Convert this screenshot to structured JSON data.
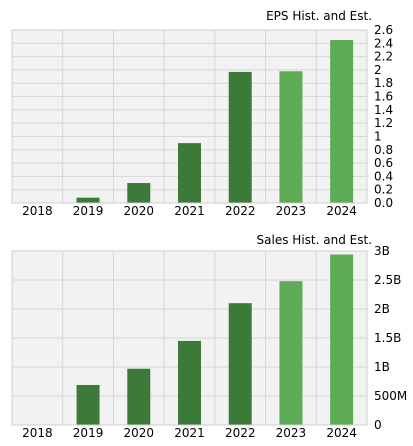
{
  "chart_data": [
    {
      "type": "bar",
      "title": "EPS Hist. and Est.",
      "xlabel": "",
      "ylabel": "",
      "categories": [
        "2018",
        "2019",
        "2020",
        "2021",
        "2022",
        "2023",
        "2024"
      ],
      "values": [
        0.0,
        0.08,
        0.3,
        0.9,
        1.97,
        1.98,
        2.45
      ],
      "estimate_flags": [
        false,
        false,
        false,
        false,
        false,
        true,
        true
      ],
      "ylim": [
        0,
        2.6
      ],
      "ytick_values": [
        0,
        0.2,
        0.4,
        0.6,
        0.8,
        1.0,
        1.2,
        1.4,
        1.6,
        1.8,
        2.0,
        2.2,
        2.4,
        2.6
      ],
      "ytick_labels": [
        "0.0",
        "0.2",
        "0.4",
        "0.6",
        "0.8",
        "1",
        "1.2",
        "1.4",
        "1.6",
        "1.8",
        "2",
        "2.2",
        "2.4",
        "2.6"
      ],
      "grid": true,
      "colors": {
        "historical": "#3d7a3a",
        "estimate": "#5eab55",
        "plot_bg": "#f2f2f2",
        "grid": "#d6d6d6"
      }
    },
    {
      "type": "bar",
      "title": "Sales Hist. and Est.",
      "xlabel": "",
      "ylabel": "",
      "categories": [
        "2018",
        "2019",
        "2020",
        "2021",
        "2022",
        "2023",
        "2024"
      ],
      "values": [
        0,
        690000000,
        970000000,
        1450000000,
        2100000000,
        2480000000,
        2940000000
      ],
      "estimate_flags": [
        false,
        false,
        false,
        false,
        false,
        true,
        true
      ],
      "ylim": [
        0,
        3000000000
      ],
      "ytick_values": [
        0,
        500000000,
        1000000000,
        1500000000,
        2000000000,
        2500000000,
        3000000000
      ],
      "ytick_labels": [
        "0",
        "500M",
        "1B",
        "1.5B",
        "2B",
        "2.5B",
        "3B"
      ],
      "grid": true,
      "colors": {
        "historical": "#3d7a3a",
        "estimate": "#5eab55",
        "plot_bg": "#f2f2f2",
        "grid": "#d6d6d6"
      }
    }
  ]
}
